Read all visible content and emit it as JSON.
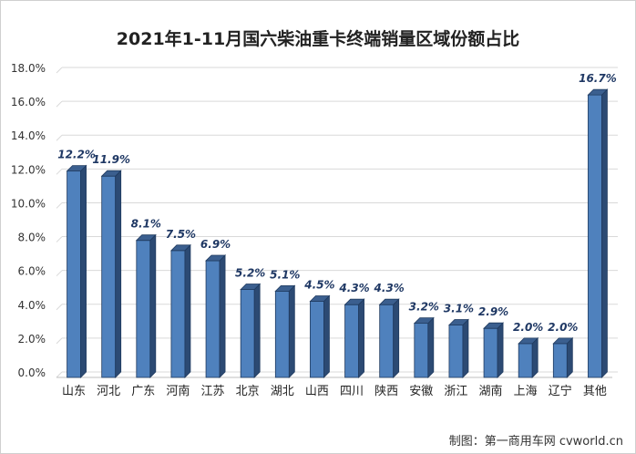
{
  "chart_data": {
    "type": "bar",
    "title": "2021年1-11月国六柴油重卡终端销量区域份额占比",
    "categories": [
      "山东",
      "河北",
      "广东",
      "河南",
      "江苏",
      "北京",
      "湖北",
      "山西",
      "四川",
      "陕西",
      "安徽",
      "浙江",
      "湖南",
      "上海",
      "辽宁",
      "其他"
    ],
    "values": [
      12.2,
      11.9,
      8.1,
      7.5,
      6.9,
      5.2,
      5.1,
      4.5,
      4.3,
      4.3,
      3.2,
      3.1,
      2.9,
      2.0,
      2.0,
      16.7
    ],
    "data_labels": [
      "12.2%",
      "11.9%",
      "8.1%",
      "7.5%",
      "6.9%",
      "5.2%",
      "5.1%",
      "4.5%",
      "4.3%",
      "4.3%",
      "3.2%",
      "3.1%",
      "2.9%",
      "2.0%",
      "2.0%",
      "16.7%"
    ],
    "y_tick_labels": [
      "0.0%",
      "2.0%",
      "4.0%",
      "6.0%",
      "8.0%",
      "10.0%",
      "12.0%",
      "14.0%",
      "16.0%",
      "18.0%"
    ],
    "ylim": [
      0,
      18
    ],
    "y_step": 2,
    "xlabel": "",
    "ylabel": "",
    "grid": true,
    "bar_color": "#4f81bd",
    "bar_side_color": "#2c4a73",
    "bar_top_color": "#3b5f8f",
    "label_color": "#1f3864"
  },
  "watermark": "制图：第一商用车网 cvworld.cn"
}
